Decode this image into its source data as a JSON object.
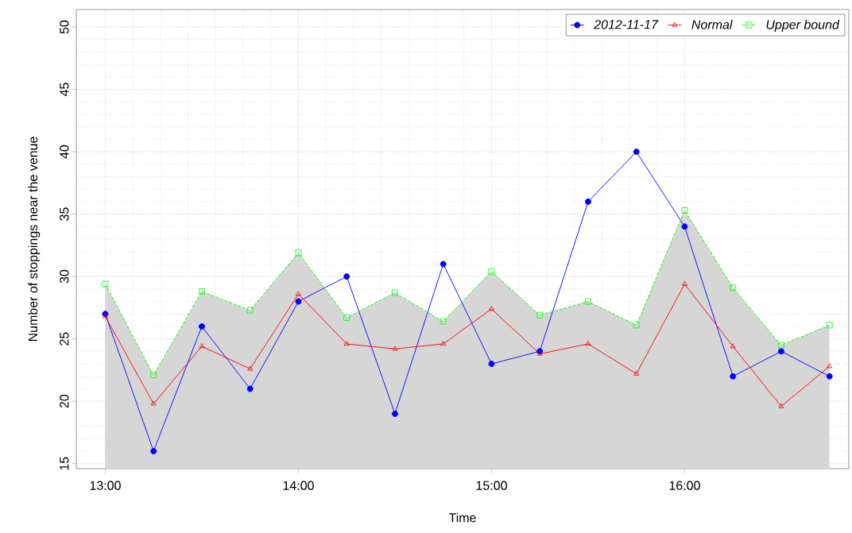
{
  "chart_data": {
    "type": "line",
    "xlabel": "Time",
    "ylabel": "Number of stoppings near the venue",
    "x": [
      13.0,
      13.25,
      13.5,
      13.75,
      14.0,
      14.25,
      14.5,
      14.75,
      15.0,
      15.25,
      15.5,
      15.75,
      16.0,
      16.25,
      16.5,
      16.75
    ],
    "series": [
      {
        "name": "2012-11-17",
        "color": "#0000ff",
        "marker": "circle",
        "line_style": "solid",
        "values": [
          27,
          16,
          26,
          21,
          28,
          30,
          19,
          31,
          23,
          24,
          36,
          40,
          34,
          22,
          24,
          22
        ]
      },
      {
        "name": "Normal",
        "color": "#ff0000",
        "marker": "triangle",
        "line_style": "solid",
        "values": [
          26.8,
          19.8,
          24.4,
          22.6,
          28.6,
          24.6,
          24.2,
          24.6,
          27.4,
          23.8,
          24.6,
          22.2,
          29.4,
          24.4,
          19.6,
          22.8
        ]
      },
      {
        "name": "Upper bound",
        "type": "area",
        "color": "#00ff00",
        "marker": "square",
        "line_style": "dashed",
        "values": [
          29.4,
          22.1,
          28.8,
          27.3,
          31.9,
          26.7,
          28.7,
          26.4,
          30.4,
          26.9,
          28.0,
          26.1,
          35.3,
          29.1,
          24.5,
          26.1
        ]
      }
    ],
    "xlim": [
      12.85,
      16.85
    ],
    "ylim": [
      14.6,
      51.4
    ],
    "xticks": [
      {
        "value": 13,
        "label": "13:00"
      },
      {
        "value": 14,
        "label": "14:00"
      },
      {
        "value": 15,
        "label": "15:00"
      },
      {
        "value": 16,
        "label": "16:00"
      }
    ],
    "yticks": [
      15,
      20,
      25,
      30,
      35,
      40,
      45,
      50
    ],
    "grid": true,
    "legend": "top right"
  }
}
